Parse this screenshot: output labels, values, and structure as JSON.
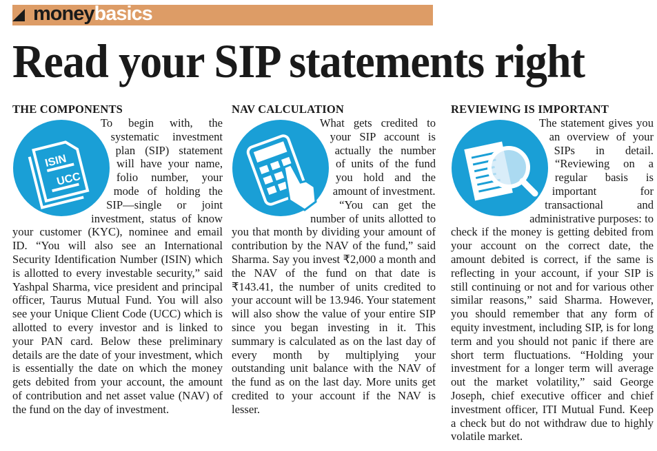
{
  "section_banner": {
    "part1": "money",
    "part2": "basics"
  },
  "headline": "Read your SIP statements right",
  "accent_color": "#1a9fd6",
  "columns": [
    {
      "heading": "THE COMPONENTS",
      "icon": "document-isin-ucc-icon",
      "icon_labels": [
        "ISIN",
        "UCC"
      ],
      "paragraphs": [
        "To begin with, the systematic investment plan (SIP) statement will have your name, folio number, your mode of holding the SIP—single or joint investment, status of know your customer (KYC), nominee and email ID. “You will also see an International Security Identification Number (ISIN) which is allotted to every investable security,” said Yashpal Sharma, vice president and principal officer, Taurus Mutual Fund. You will also see your Unique Client Code (UCC) which is allotted to every investor and is linked to your PAN card. Below these preliminary details are the date of your investment, which is essentially the date on which the money gets debited from your account, the amount of contribution and net asset value (NAV) of the fund on the day of investment."
      ]
    },
    {
      "heading": "NAV CALCULATION",
      "icon": "calculator-hand-icon",
      "paragraphs": [
        "What gets credited to your SIP account is actually the number of units of the fund you hold and the amount of investment.",
        "“You can get the number of units allotted to you that month by dividing your amount of contribution by the NAV of the fund,” said Sharma. Say you invest ₹2,000 a month and the NAV of the fund on that date is ₹143.41, the number of units credited to your account will be 13.946. Your statement will also show the value of your entire SIP since you began investing in it. This summary is calculated as on the last day of every month by multiplying your outstanding unit balance with the NAV of the fund as on the last day. More units get credited to your account if the NAV is lesser."
      ]
    },
    {
      "heading": "REVIEWING IS IMPORTANT",
      "icon": "document-magnifier-icon",
      "paragraphs": [
        "The statement gives you an overview of your SIPs in detail. “Reviewing on a regular basis is important for transactional and administrative purposes: to check if the money is getting debited from your account on the correct date, the amount debited is correct, if the same is reflecting in your account, if your SIP is still continuing or not and for various other similar reasons,” said Sharma. However, you should remember that any form of equity investment, including SIP, is for long term and you should not panic if there are short term fluctuations. “Holding your investment for a longer term will average out the market volatility,” said George Joseph, chief executive officer and chief investment officer, ITI Mutual Fund. Keep a check but do not withdraw due to highly volatile market."
      ]
    }
  ]
}
